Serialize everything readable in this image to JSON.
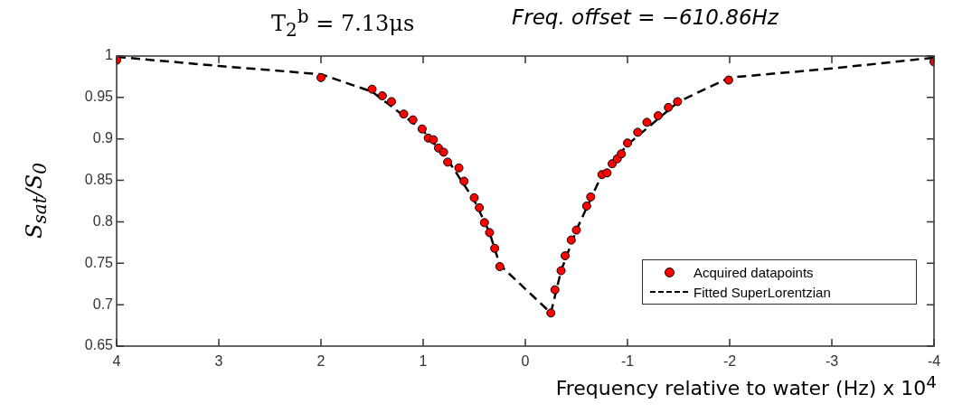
{
  "chart_data": {
    "type": "scatter",
    "title": "T$_{2}$$^{b}$ = 7.13μs",
    "subtitle": "Freq. offset = −610.86Hz",
    "xlabel": "Frequency relative to water (Hz) x 10$^{4}$",
    "ylabel": "S$_{sat}$/S$_{0}$",
    "xlim": [
      4,
      -4
    ],
    "xticks": [
      4,
      3,
      2,
      1,
      0,
      -1,
      -2,
      -3,
      -4
    ],
    "ylim": [
      0.65,
      1
    ],
    "yticks": [
      0.65,
      0.7,
      0.75,
      0.8,
      0.85,
      0.9,
      0.95,
      1
    ],
    "grid": false,
    "legend": "bottom right",
    "series": [
      {
        "name": "Acquired datapoints",
        "type": "scatter",
        "marker": "circle",
        "color": "#ff0000",
        "x": [
          4,
          2,
          1.5,
          1.4,
          1.31,
          1.19,
          1.1,
          1.01,
          0.95,
          0.9,
          0.85,
          0.8,
          0.76,
          0.65,
          0.6,
          0.5,
          0.45,
          0.4,
          0.35,
          0.3,
          0.25,
          -0.25,
          -0.29,
          -0.35,
          -0.39,
          -0.45,
          -0.5,
          -0.6,
          -0.64,
          -0.75,
          -0.8,
          -0.85,
          -0.9,
          -0.94,
          -1,
          -1.1,
          -1.19,
          -1.3,
          -1.4,
          -1.49,
          -1.99,
          -4
        ],
        "values": [
          0.995,
          0.974,
          0.96,
          0.952,
          0.945,
          0.93,
          0.923,
          0.912,
          0.901,
          0.899,
          0.889,
          0.884,
          0.872,
          0.865,
          0.849,
          0.829,
          0.817,
          0.799,
          0.787,
          0.768,
          0.746,
          0.69,
          0.718,
          0.741,
          0.759,
          0.778,
          0.79,
          0.819,
          0.83,
          0.857,
          0.859,
          0.87,
          0.876,
          0.882,
          0.895,
          0.908,
          0.92,
          0.928,
          0.938,
          0.945,
          0.971,
          0.993
        ]
      },
      {
        "name": "Fitted SuperLorentzian",
        "type": "line",
        "marker": "none",
        "line_style": "dashed",
        "color": "#000000",
        "x": [
          4,
          3,
          2,
          1.5,
          1,
          0.75,
          0.5,
          0.35,
          0.25,
          -0.25,
          -0.35,
          -0.5,
          -0.75,
          -1,
          -1.5,
          -2,
          -3,
          -4
        ],
        "values": [
          0.999,
          0.988,
          0.978,
          0.957,
          0.91,
          0.873,
          0.826,
          0.787,
          0.748,
          0.69,
          0.741,
          0.79,
          0.857,
          0.893,
          0.945,
          0.974,
          0.985,
          0.998
        ]
      }
    ]
  }
}
